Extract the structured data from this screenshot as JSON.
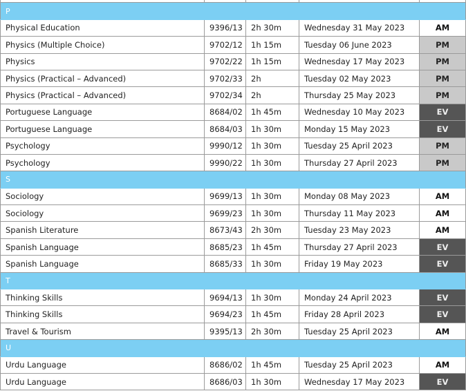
{
  "accent_colors": {
    "section_header": "#7ccff3",
    "PM": "#c9c9c9",
    "EV": "#555555"
  },
  "sections": [
    {
      "letter": "P",
      "rows": [
        {
          "subject": "Physical Education",
          "code": "9396/13",
          "duration": "2h 30m",
          "date": "Wednesday 31 May 2023",
          "session": "AM"
        },
        {
          "subject": "Physics (Multiple Choice)",
          "code": "9702/12",
          "duration": "1h 15m",
          "date": "Tuesday 06 June 2023",
          "session": "PM"
        },
        {
          "subject": "Physics",
          "code": "9702/22",
          "duration": "1h 15m",
          "date": "Wednesday 17 May 2023",
          "session": "PM"
        },
        {
          "subject": "Physics (Practical – Advanced)",
          "code": "9702/33",
          "duration": "2h",
          "date": "Tuesday 02 May 2023",
          "session": "PM"
        },
        {
          "subject": "Physics (Practical – Advanced)",
          "code": "9702/34",
          "duration": "2h",
          "date": "Thursday 25 May 2023",
          "session": "PM"
        },
        {
          "subject": "Portuguese Language",
          "code": "8684/02",
          "duration": "1h 45m",
          "date": "Wednesday 10 May 2023",
          "session": "EV"
        },
        {
          "subject": "Portuguese Language",
          "code": "8684/03",
          "duration": "1h 30m",
          "date": "Monday 15 May 2023",
          "session": "EV"
        },
        {
          "subject": "Psychology",
          "code": "9990/12",
          "duration": "1h 30m",
          "date": "Tuesday 25 April 2023",
          "session": "PM"
        },
        {
          "subject": "Psychology",
          "code": "9990/22",
          "duration": "1h 30m",
          "date": "Thursday 27 April 2023",
          "session": "PM"
        }
      ]
    },
    {
      "letter": "S",
      "rows": [
        {
          "subject": "Sociology",
          "code": "9699/13",
          "duration": "1h 30m",
          "date": "Monday 08 May 2023",
          "session": "AM"
        },
        {
          "subject": "Sociology",
          "code": "9699/23",
          "duration": "1h 30m",
          "date": "Thursday 11 May 2023",
          "session": "AM"
        },
        {
          "subject": "Spanish Literature",
          "code": "8673/43",
          "duration": "2h 30m",
          "date": "Tuesday 23 May 2023",
          "session": "AM"
        },
        {
          "subject": "Spanish Language",
          "code": "8685/23",
          "duration": "1h 45m",
          "date": "Thursday 27 April 2023",
          "session": "EV"
        },
        {
          "subject": "Spanish Language",
          "code": "8685/33",
          "duration": "1h 30m",
          "date": "Friday 19 May 2023",
          "session": "EV"
        }
      ]
    },
    {
      "letter": "T",
      "rows": [
        {
          "subject": "Thinking Skills",
          "code": "9694/13",
          "duration": "1h 30m",
          "date": "Monday 24 April 2023",
          "session": "EV"
        },
        {
          "subject": "Thinking Skills",
          "code": "9694/23",
          "duration": "1h 45m",
          "date": "Friday 28 April 2023",
          "session": "EV"
        },
        {
          "subject": "Travel & Tourism",
          "code": "9395/13",
          "duration": "2h 30m",
          "date": "Tuesday 25 April 2023",
          "session": "AM"
        }
      ]
    },
    {
      "letter": "U",
      "rows": [
        {
          "subject": "Urdu Language",
          "code": "8686/02",
          "duration": "1h 45m",
          "date": "Tuesday 25 April 2023",
          "session": "AM"
        },
        {
          "subject": "Urdu Language",
          "code": "8686/03",
          "duration": "1h 30m",
          "date": "Wednesday 17 May 2023",
          "session": "EV"
        }
      ]
    }
  ]
}
